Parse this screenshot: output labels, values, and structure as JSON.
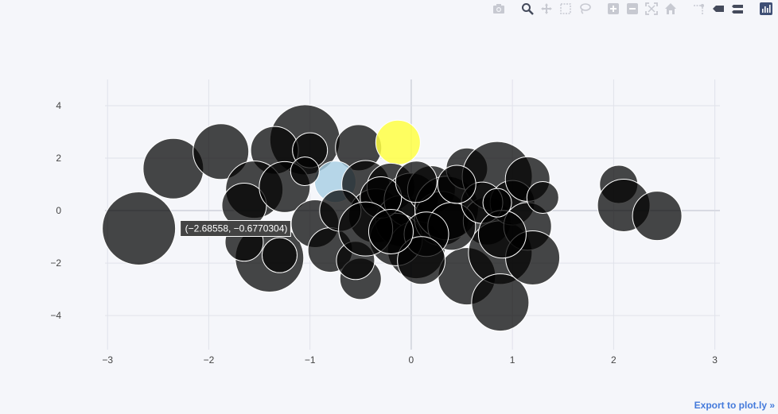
{
  "toolbar": {
    "icons": [
      "camera-icon",
      "zoom-icon",
      "pan-icon",
      "box-select-icon",
      "lasso-icon",
      "zoom-in-icon",
      "zoom-out-icon",
      "autoscale-icon",
      "reset-axes-icon",
      "spike-lines-icon",
      "hover-closest-icon",
      "hover-compare-icon",
      "plotly-logo-icon"
    ]
  },
  "export_label": "Export to plot.ly »",
  "hover_label": "(−2.68558, −0.6770304)",
  "colors": {
    "bubble_fill": "#000000",
    "bubble_stroke": "#ffffff",
    "highlight_yellow": "#ffff44",
    "highlight_blue": "#a6cee3",
    "grid": "#e0e2ea",
    "zeroline": "#d8dae2"
  },
  "chart_data": {
    "type": "scatter",
    "mode": "bubble",
    "xlim": [
      -3.3,
      3.05
    ],
    "ylim": [
      -5.3,
      5.0
    ],
    "xticks": [
      -3,
      -2,
      -1,
      0,
      1,
      2,
      3
    ],
    "xtick_labels": [
      "−3",
      "−2",
      "−1",
      "0",
      "1",
      "2",
      "3"
    ],
    "yticks": [
      -4,
      -2,
      0,
      2,
      4
    ],
    "ytick_labels": [
      "−4",
      "−2",
      "0",
      "2",
      "4"
    ],
    "grid": true,
    "points": [
      {
        "x": -2.69,
        "y": -0.68,
        "s": 46,
        "c": "dark"
      },
      {
        "x": -2.35,
        "y": 1.6,
        "s": 38,
        "c": "dark"
      },
      {
        "x": -1.88,
        "y": 2.25,
        "s": 35,
        "c": "dark"
      },
      {
        "x": -1.05,
        "y": 2.7,
        "s": 44,
        "c": "dark"
      },
      {
        "x": -1.35,
        "y": 2.3,
        "s": 30,
        "c": "dark"
      },
      {
        "x": -0.52,
        "y": 2.4,
        "s": 29,
        "c": "dark"
      },
      {
        "x": -0.13,
        "y": 2.6,
        "s": 28,
        "c": "yellow"
      },
      {
        "x": -1.0,
        "y": 2.3,
        "s": 22,
        "c": "dark"
      },
      {
        "x": -1.55,
        "y": 0.8,
        "s": 36,
        "c": "dark"
      },
      {
        "x": -1.65,
        "y": 0.2,
        "s": 28,
        "c": "dark"
      },
      {
        "x": -1.25,
        "y": 0.9,
        "s": 32,
        "c": "dark"
      },
      {
        "x": -1.4,
        "y": -1.8,
        "s": 43,
        "c": "dark"
      },
      {
        "x": -1.3,
        "y": -1.7,
        "s": 22,
        "c": "dark"
      },
      {
        "x": -1.65,
        "y": -1.2,
        "s": 24,
        "c": "dark"
      },
      {
        "x": -0.95,
        "y": -0.5,
        "s": 30,
        "c": "dark"
      },
      {
        "x": -0.8,
        "y": -1.5,
        "s": 28,
        "c": "dark"
      },
      {
        "x": -0.5,
        "y": -2.6,
        "s": 26,
        "c": "dark"
      },
      {
        "x": -0.55,
        "y": -1.9,
        "s": 24,
        "c": "dark"
      },
      {
        "x": -0.75,
        "y": 1.1,
        "s": 26,
        "c": "blue"
      },
      {
        "x": -0.45,
        "y": 1.0,
        "s": 30,
        "c": "dark"
      },
      {
        "x": -0.35,
        "y": -0.2,
        "s": 34,
        "c": "dark"
      },
      {
        "x": -0.2,
        "y": 0.9,
        "s": 30,
        "c": "dark"
      },
      {
        "x": -0.1,
        "y": -0.4,
        "s": 32,
        "c": "dark"
      },
      {
        "x": 0.0,
        "y": 0.4,
        "s": 34,
        "c": "dark"
      },
      {
        "x": 0.05,
        "y": -1.5,
        "s": 36,
        "c": "dark"
      },
      {
        "x": -0.15,
        "y": -1.1,
        "s": 33,
        "c": "dark"
      },
      {
        "x": 0.2,
        "y": 0.8,
        "s": 30,
        "c": "dark"
      },
      {
        "x": 0.3,
        "y": -0.3,
        "s": 34,
        "c": "dark"
      },
      {
        "x": 0.35,
        "y": 0.1,
        "s": 40,
        "c": "dark"
      },
      {
        "x": 0.55,
        "y": 1.6,
        "s": 26,
        "c": "dark"
      },
      {
        "x": 0.55,
        "y": -2.5,
        "s": 36,
        "c": "dark"
      },
      {
        "x": 0.75,
        "y": -0.4,
        "s": 30,
        "c": "dark"
      },
      {
        "x": 0.85,
        "y": 1.3,
        "s": 44,
        "c": "dark"
      },
      {
        "x": 0.88,
        "y": -1.6,
        "s": 40,
        "c": "dark"
      },
      {
        "x": 0.88,
        "y": -3.5,
        "s": 36,
        "c": "dark"
      },
      {
        "x": 1.0,
        "y": 0.3,
        "s": 28,
        "c": "dark"
      },
      {
        "x": 1.15,
        "y": 1.2,
        "s": 28,
        "c": "dark"
      },
      {
        "x": 1.15,
        "y": -0.6,
        "s": 30,
        "c": "dark"
      },
      {
        "x": 1.2,
        "y": -1.8,
        "s": 34,
        "c": "dark"
      },
      {
        "x": 1.3,
        "y": 0.5,
        "s": 20,
        "c": "dark"
      },
      {
        "x": 2.05,
        "y": 1.0,
        "s": 24,
        "c": "dark"
      },
      {
        "x": 2.1,
        "y": 0.2,
        "s": 33,
        "c": "dark"
      },
      {
        "x": 2.43,
        "y": -0.2,
        "s": 31,
        "c": "dark"
      },
      {
        "x": 0.4,
        "y": -0.6,
        "s": 30,
        "c": "dark"
      },
      {
        "x": -0.3,
        "y": 0.5,
        "s": 26,
        "c": "dark"
      },
      {
        "x": -0.7,
        "y": 0.0,
        "s": 26,
        "c": "dark"
      },
      {
        "x": 0.15,
        "y": -0.9,
        "s": 28,
        "c": "dark"
      },
      {
        "x": 0.7,
        "y": 0.3,
        "s": 26,
        "c": "dark"
      },
      {
        "x": 0.9,
        "y": -0.9,
        "s": 30,
        "c": "dark"
      },
      {
        "x": -0.45,
        "y": -0.7,
        "s": 34,
        "c": "dark"
      },
      {
        "x": 0.05,
        "y": 1.1,
        "s": 26,
        "c": "dark"
      },
      {
        "x": -1.05,
        "y": 1.5,
        "s": 18,
        "c": "dark"
      },
      {
        "x": 0.1,
        "y": -1.9,
        "s": 30,
        "c": "dark"
      },
      {
        "x": 0.45,
        "y": 1.0,
        "s": 24,
        "c": "dark"
      },
      {
        "x": 0.85,
        "y": 0.3,
        "s": 18,
        "c": "dark"
      },
      {
        "x": -0.2,
        "y": -0.8,
        "s": 28,
        "c": "dark"
      }
    ]
  }
}
